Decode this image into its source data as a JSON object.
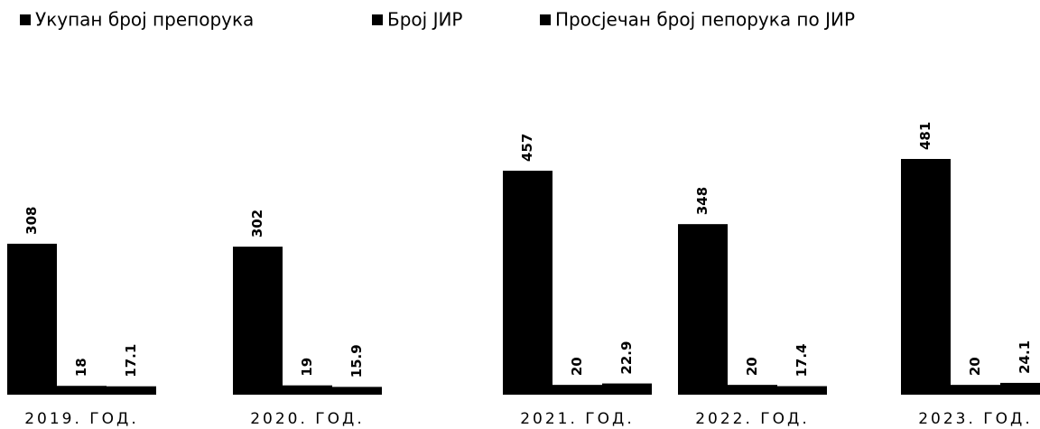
{
  "chart_data": {
    "type": "bar",
    "categories": [
      "2019. ГОД.",
      "2020. ГОД.",
      "2021. ГОД.",
      "2022. ГОД.",
      "2023. ГОД."
    ],
    "series": [
      {
        "name": "Укупан број препорука",
        "color": "#000000",
        "values": [
          308,
          302,
          457,
          348,
          481
        ]
      },
      {
        "name": "Број ЈИР",
        "color": "#000000",
        "values": [
          18,
          19,
          20,
          20,
          20
        ]
      },
      {
        "name": "Просјечан број пепорука по ЈИР",
        "color": "#000000",
        "values": [
          17.1,
          15.9,
          22.9,
          17.4,
          24.1
        ]
      }
    ],
    "legend": "top"
  }
}
